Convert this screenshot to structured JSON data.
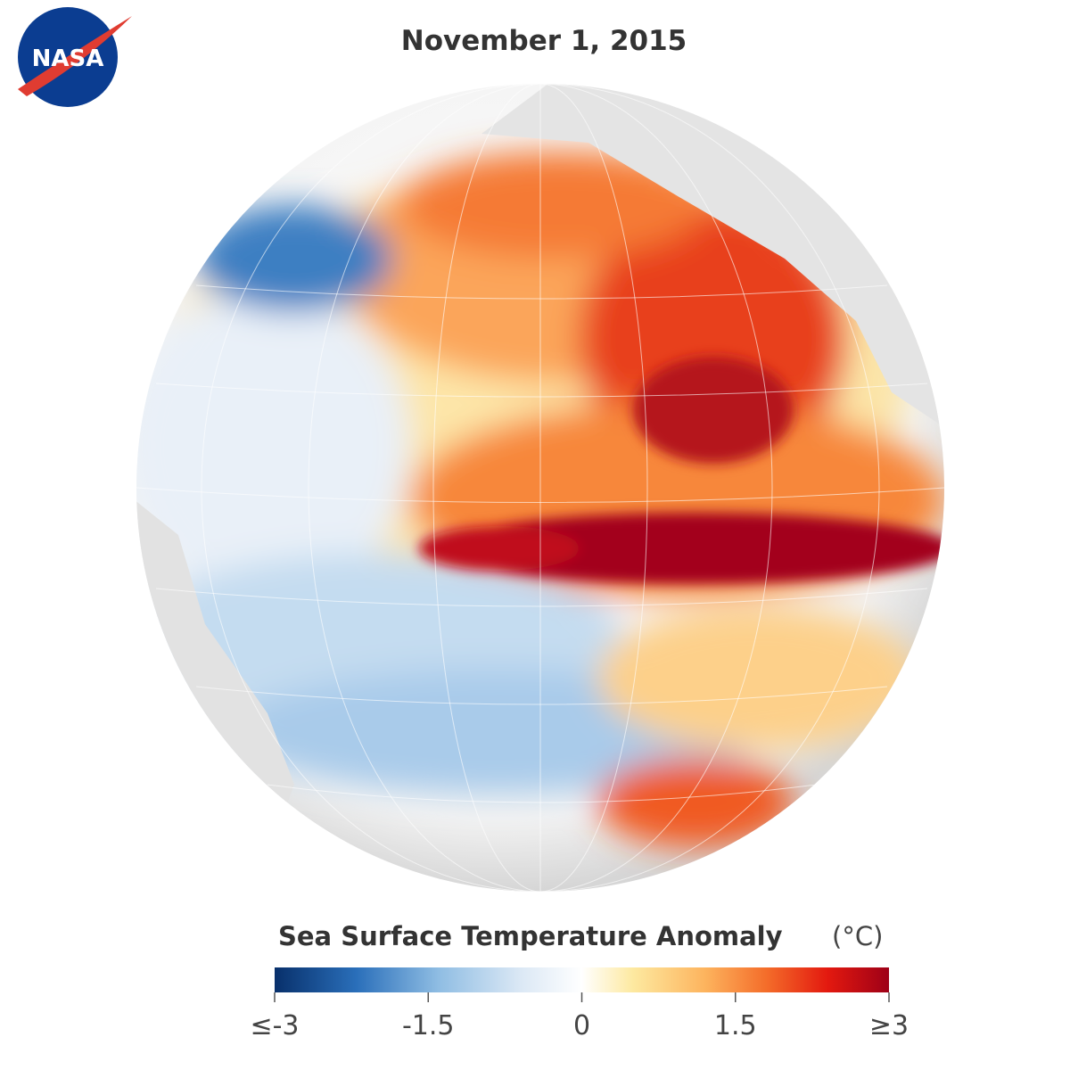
{
  "logo": {
    "text": "NASA"
  },
  "title": "November 1, 2015",
  "legend": {
    "title": "Sea Surface Temperature Anomaly",
    "unit": "(°C)",
    "range": [
      -3,
      3
    ],
    "ticks": [
      {
        "value": -3,
        "label": "≤-3"
      },
      -1.5,
      0,
      1.5,
      {
        "value": 3,
        "label": "≥3"
      }
    ],
    "colormap": [
      {
        "value": -3,
        "color": "#08306b"
      },
      {
        "value": -2.2,
        "color": "#2a6fba"
      },
      {
        "value": -1.4,
        "color": "#8fbde3"
      },
      {
        "value": -0.6,
        "color": "#dbe8f5"
      },
      {
        "value": 0,
        "color": "#ffffff"
      },
      {
        "value": 0.5,
        "color": "#fde9a0"
      },
      {
        "value": 1.2,
        "color": "#fdb45e"
      },
      {
        "value": 1.8,
        "color": "#f46d2a"
      },
      {
        "value": 2.4,
        "color": "#e3190f"
      },
      {
        "value": 3,
        "color": "#9e0017"
      }
    ]
  }
}
